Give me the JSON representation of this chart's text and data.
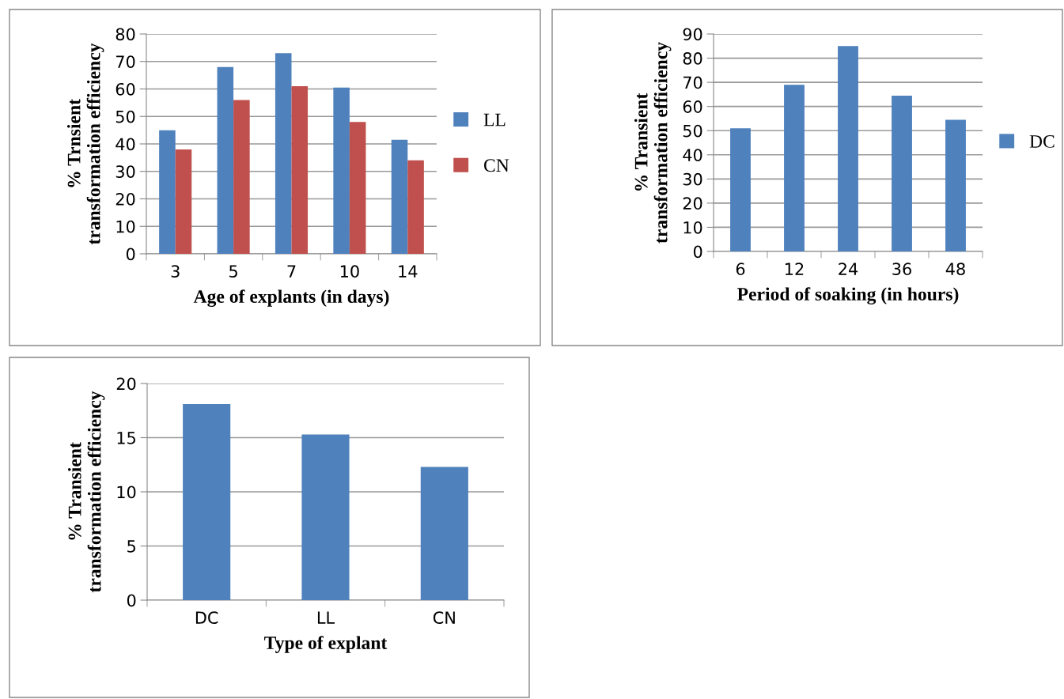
{
  "chart_data": [
    {
      "type": "bar",
      "xlabel": "Age of explants (in days)",
      "ylabel": "% Trnsient\ntransformation efficiency",
      "categories": [
        "3",
        "5",
        "7",
        "10",
        "14"
      ],
      "series": [
        {
          "name": "LL",
          "color": "#4f81bd",
          "values": [
            45,
            68,
            73,
            60.5,
            41.5
          ]
        },
        {
          "name": "CN",
          "color": "#c0504d",
          "values": [
            38,
            56,
            61,
            48,
            34
          ]
        }
      ],
      "ylim": [
        0,
        80
      ],
      "yticks": [
        0,
        10,
        20,
        30,
        40,
        50,
        60,
        70,
        80
      ],
      "grid": "y",
      "legend": "right"
    },
    {
      "type": "bar",
      "xlabel": "Period of soaking (in hours)",
      "ylabel": "% Transient\ntransformation efficiency",
      "categories": [
        "6",
        "12",
        "24",
        "36",
        "48"
      ],
      "series": [
        {
          "name": "DC",
          "color": "#4f81bd",
          "values": [
            51,
            69,
            85,
            64.5,
            54.5
          ]
        }
      ],
      "ylim": [
        0,
        90
      ],
      "yticks": [
        0,
        10,
        20,
        30,
        40,
        50,
        60,
        70,
        80,
        90
      ],
      "grid": "y",
      "legend": "right"
    },
    {
      "type": "bar",
      "xlabel": "Type of explant",
      "ylabel": "% Transient\ntransformation efficiency",
      "categories": [
        "DC",
        "LL",
        "CN"
      ],
      "series": [
        {
          "color": "#4f81bd",
          "values": [
            18.1,
            15.3,
            12.3
          ]
        }
      ],
      "ylim": [
        0,
        20
      ],
      "yticks": [
        0,
        5,
        10,
        15,
        20
      ],
      "grid": "y"
    }
  ]
}
